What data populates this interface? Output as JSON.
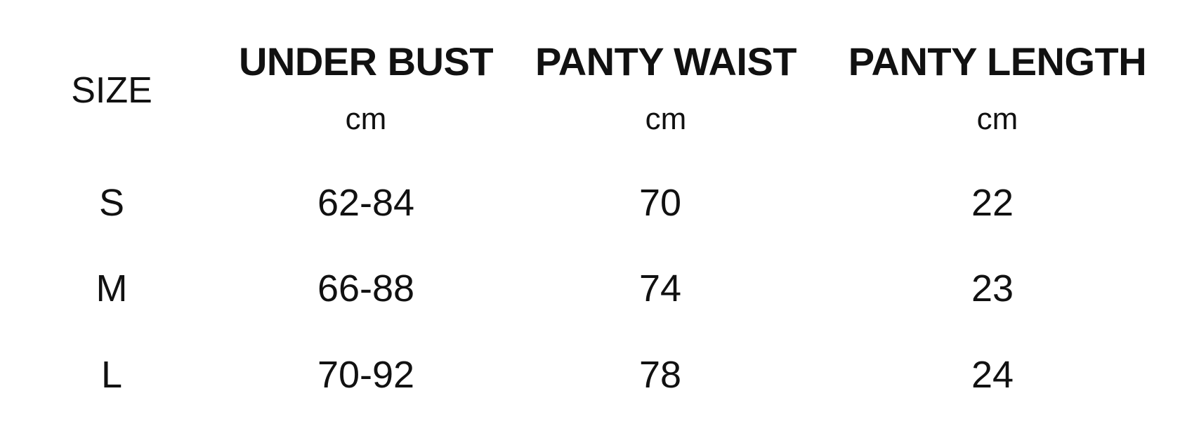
{
  "table": {
    "size_header": "SIZE",
    "columns": [
      {
        "label": "UNDER BUST",
        "unit": "cm"
      },
      {
        "label": "PANTY WAIST",
        "unit": "cm"
      },
      {
        "label": "PANTY LENGTH",
        "unit": "cm"
      }
    ],
    "rows": [
      {
        "size": "S",
        "values": [
          "62-84",
          "70",
          "22"
        ]
      },
      {
        "size": "M",
        "values": [
          "66-88",
          "74",
          "23"
        ]
      },
      {
        "size": "L",
        "values": [
          "70-92",
          "78",
          "24"
        ]
      }
    ]
  }
}
